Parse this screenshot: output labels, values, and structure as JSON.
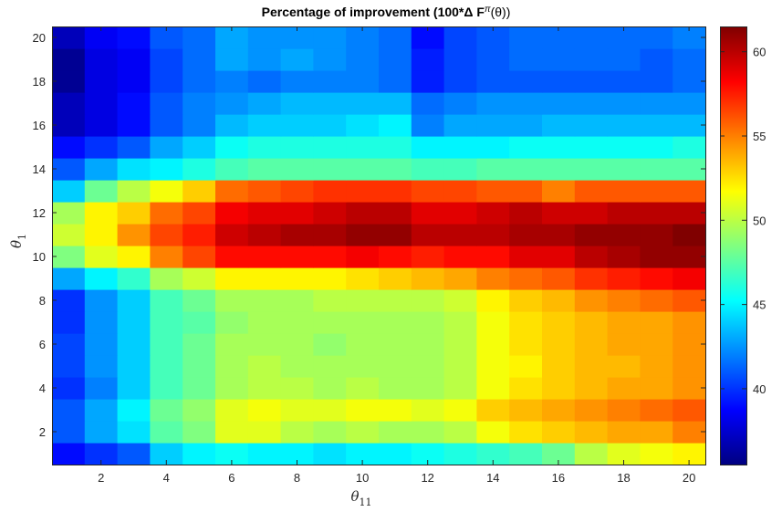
{
  "chart_data": {
    "type": "heatmap",
    "title": "Percentage of improvement (100*Δ Fπ(θ))",
    "xlabel": "θ",
    "xlabel_subscript": "11",
    "ylabel": "θ",
    "ylabel_subscript": "1",
    "x": [
      1,
      2,
      3,
      4,
      5,
      6,
      7,
      8,
      9,
      10,
      11,
      12,
      13,
      14,
      15,
      16,
      17,
      18,
      19,
      20
    ],
    "y": [
      1,
      2,
      3,
      4,
      5,
      6,
      7,
      8,
      9,
      10,
      11,
      12,
      13,
      14,
      15,
      16,
      17,
      18,
      19,
      20
    ],
    "xlim": [
      0.5,
      20.5
    ],
    "ylim": [
      0.5,
      20.5
    ],
    "xticks": [
      2,
      4,
      6,
      8,
      10,
      12,
      14,
      16,
      18,
      20
    ],
    "yticks": [
      2,
      4,
      6,
      8,
      10,
      12,
      14,
      16,
      18,
      20
    ],
    "colormap": "jet",
    "clim": [
      35.5,
      61.5
    ],
    "colorbar_ticks": [
      40,
      45,
      50,
      55,
      60
    ],
    "grid": false,
    "z": [
      [
        39,
        40,
        41,
        44,
        45,
        45.5,
        45,
        45,
        44.5,
        45,
        45,
        45.5,
        46,
        46.5,
        47,
        48,
        50,
        51,
        51.5,
        52
      ],
      [
        41,
        43,
        44.5,
        47.5,
        48.5,
        51,
        51,
        50,
        49.5,
        50,
        49.5,
        49.5,
        50,
        51.5,
        52.5,
        53,
        53.5,
        54,
        54,
        55
      ],
      [
        41,
        43,
        45,
        48,
        49,
        51,
        51.5,
        51,
        51,
        51.5,
        51.5,
        51,
        51.5,
        53,
        53.5,
        54,
        54.5,
        55,
        55.5,
        56
      ],
      [
        40,
        42,
        44,
        47,
        48,
        49.5,
        50,
        50,
        49.5,
        50,
        49.5,
        49.5,
        50,
        51.5,
        52.5,
        53,
        53.5,
        54,
        54,
        54.5
      ],
      [
        40.5,
        42.5,
        44,
        47,
        48,
        49.5,
        50,
        49.5,
        49.5,
        49.5,
        49.5,
        49.5,
        50,
        51.5,
        52,
        53,
        53.5,
        53.5,
        54,
        54.5
      ],
      [
        40.5,
        42.5,
        44,
        47,
        48,
        49.5,
        49.5,
        49.5,
        49,
        49.5,
        49.5,
        49.5,
        50,
        51.5,
        52.5,
        53,
        53.5,
        54,
        54,
        54.5
      ],
      [
        40,
        42.5,
        44,
        47,
        47.5,
        49,
        49.5,
        49.5,
        49.5,
        49.5,
        49.5,
        49.5,
        50,
        51.5,
        52.5,
        53,
        53.5,
        54,
        54,
        54.5
      ],
      [
        40,
        42.5,
        44,
        47,
        48,
        49.5,
        49.5,
        49.5,
        50,
        50,
        50,
        50,
        50.5,
        52,
        53,
        53.5,
        54.5,
        55,
        55.5,
        56
      ],
      [
        43,
        45,
        46.5,
        49.5,
        50.5,
        52,
        52,
        52,
        52,
        52.5,
        53,
        53.5,
        54,
        55,
        55.5,
        56,
        57,
        57.5,
        58,
        58.5
      ],
      [
        48.5,
        51,
        52,
        55,
        56.5,
        58,
        58,
        58,
        58,
        58.5,
        58,
        57.5,
        58,
        58,
        59,
        59,
        60,
        60.5,
        61,
        61
      ],
      [
        50.5,
        52,
        54.5,
        56.5,
        57.5,
        59.5,
        60,
        60.5,
        60.5,
        61,
        61,
        60,
        60,
        60,
        60.5,
        60.5,
        61,
        61,
        61,
        61.5
      ],
      [
        49.5,
        52,
        53,
        55.5,
        56.5,
        58.5,
        59,
        59,
        59.5,
        60,
        60,
        59,
        59,
        59.5,
        60,
        59.5,
        59.5,
        60,
        60,
        60
      ],
      [
        44,
        48,
        50,
        51.5,
        53,
        55.5,
        56,
        56.5,
        57,
        57,
        57,
        56.5,
        56.5,
        56,
        56,
        55,
        56,
        56,
        56,
        56
      ],
      [
        41,
        43,
        44.5,
        45,
        46,
        47,
        47.5,
        47.5,
        47.5,
        47.5,
        47.5,
        47,
        47,
        47.5,
        47.5,
        47.5,
        47.5,
        47.5,
        47.5,
        47.5
      ],
      [
        39,
        40,
        41,
        43,
        44,
        45.5,
        46,
        46,
        46,
        46,
        46,
        45,
        45,
        45,
        45.5,
        45.5,
        45.5,
        45.5,
        45.5,
        46
      ],
      [
        37,
        38,
        39,
        41,
        42,
        43.5,
        44,
        44,
        44,
        44.5,
        45,
        42,
        43,
        43,
        43,
        43.5,
        43.5,
        43.5,
        43.5,
        43.5
      ],
      [
        37,
        38,
        39,
        41,
        42,
        42.5,
        43,
        43.5,
        43.5,
        43.5,
        43.5,
        41.5,
        42,
        42.5,
        42.5,
        42.5,
        42.5,
        42.5,
        42.5,
        42.5
      ],
      [
        36,
        38,
        38.5,
        40.5,
        41.5,
        42,
        41.5,
        42,
        42,
        42,
        41.5,
        39.5,
        40.5,
        41,
        41,
        41,
        41,
        41,
        41,
        41.5
      ],
      [
        36,
        38,
        38.5,
        40.5,
        41.5,
        43,
        42.5,
        43,
        42.5,
        42,
        41.5,
        39.5,
        40.5,
        41,
        41.5,
        41.5,
        41.5,
        41.5,
        41,
        41.5
      ],
      [
        37,
        38.5,
        39,
        41,
        41.5,
        43,
        42.5,
        42.5,
        42.5,
        42,
        41.5,
        39,
        40.5,
        41,
        41.5,
        41.5,
        41.5,
        41.5,
        41.5,
        42
      ]
    ]
  }
}
